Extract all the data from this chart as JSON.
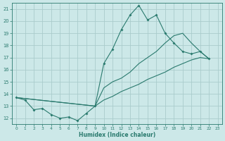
{
  "xlabel": "Humidex (Indice chaleur)",
  "bg_color": "#cce8e8",
  "grid_color": "#aacccc",
  "line_color": "#2a7a6e",
  "xlim": [
    -0.5,
    23.5
  ],
  "ylim": [
    11.5,
    21.5
  ],
  "xticks": [
    0,
    1,
    2,
    3,
    4,
    5,
    6,
    7,
    8,
    9,
    10,
    11,
    12,
    13,
    14,
    15,
    16,
    17,
    18,
    19,
    20,
    21,
    22,
    23
  ],
  "yticks": [
    12,
    13,
    14,
    15,
    16,
    17,
    18,
    19,
    20,
    21
  ],
  "series1_x": [
    0,
    1,
    2,
    3,
    4,
    5,
    6,
    7,
    8,
    9,
    10,
    11,
    12,
    13,
    14,
    15,
    16,
    17,
    18,
    19,
    20,
    21,
    22
  ],
  "series1_y": [
    13.7,
    13.5,
    12.7,
    12.8,
    12.3,
    12.0,
    12.1,
    11.8,
    12.4,
    13.0,
    16.5,
    17.7,
    19.3,
    20.5,
    21.3,
    20.1,
    20.5,
    19.0,
    18.2,
    17.5,
    17.3,
    17.5,
    16.9
  ],
  "series2_x": [
    0,
    9,
    10,
    11,
    12,
    13,
    14,
    15,
    16,
    17,
    18,
    19,
    20,
    21,
    22
  ],
  "series2_y": [
    13.7,
    13.0,
    14.5,
    15.0,
    15.3,
    15.8,
    16.5,
    17.0,
    17.5,
    18.2,
    18.8,
    19.0,
    18.2,
    17.5,
    16.9
  ],
  "series3_x": [
    0,
    9,
    10,
    11,
    12,
    13,
    14,
    15,
    16,
    17,
    18,
    19,
    20,
    21,
    22
  ],
  "series3_y": [
    13.7,
    13.0,
    13.5,
    13.8,
    14.2,
    14.5,
    14.8,
    15.2,
    15.5,
    15.8,
    16.2,
    16.5,
    16.8,
    17.0,
    16.9
  ]
}
